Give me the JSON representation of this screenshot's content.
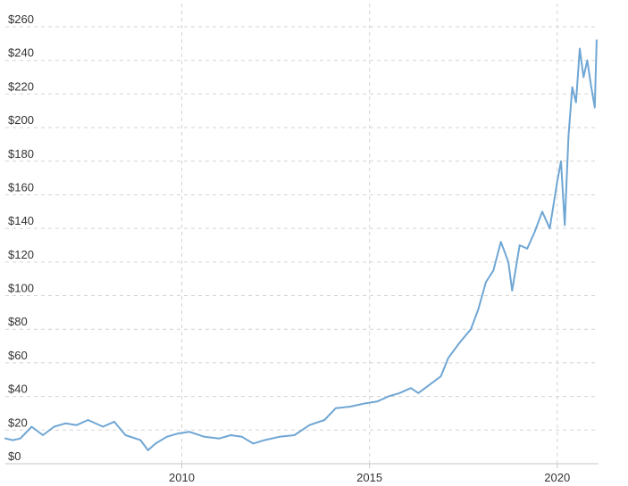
{
  "chart_data": {
    "type": "line",
    "title": "",
    "xlabel": "",
    "ylabel": "",
    "xlim": [
      2005.3,
      2021.1
    ],
    "ylim": [
      0,
      260
    ],
    "grid": true,
    "y_ticks": [
      "$0",
      "$20",
      "$40",
      "$60",
      "$80",
      "$100",
      "$120",
      "$140",
      "$160",
      "$180",
      "$200",
      "$220",
      "$240",
      "$260"
    ],
    "x_ticks": [
      "2010",
      "2015",
      "2020"
    ],
    "colors": {
      "line": "#6fa6d4",
      "grid": "#d4d4d4",
      "text": "#333333"
    },
    "series": [
      {
        "x": [
          2005.3,
          2005.5,
          2005.7,
          2006.0,
          2006.3,
          2006.6,
          2006.9,
          2007.2,
          2007.5,
          2007.9,
          2008.2,
          2008.5,
          2008.9,
          2009.1,
          2009.3,
          2009.6,
          2009.9,
          2010.2,
          2010.6,
          2011.0,
          2011.3,
          2011.6,
          2011.9,
          2012.2,
          2012.6,
          2013.0,
          2013.4,
          2013.8,
          2014.1,
          2014.5,
          2014.9,
          2015.2,
          2015.5,
          2015.8,
          2016.1,
          2016.3,
          2016.6,
          2016.9,
          2017.1,
          2017.4,
          2017.7,
          2017.9,
          2018.1,
          2018.3,
          2018.5,
          2018.7,
          2018.8,
          2019.0,
          2019.2,
          2019.4,
          2019.6,
          2019.8,
          2020.0,
          2020.1,
          2020.2,
          2020.3,
          2020.4,
          2020.5,
          2020.6,
          2020.7,
          2020.8,
          2020.9,
          2021.0,
          2021.05
        ],
        "y": [
          15,
          14,
          15,
          22,
          17,
          22,
          24,
          23,
          26,
          22,
          25,
          17,
          14,
          8,
          12,
          16,
          18,
          19,
          16,
          15,
          17,
          16,
          12,
          14,
          16,
          17,
          23,
          26,
          33,
          34,
          36,
          37,
          40,
          42,
          45,
          42,
          47,
          52,
          63,
          72,
          80,
          92,
          108,
          115,
          132,
          120,
          103,
          130,
          128,
          138,
          150,
          140,
          168,
          180,
          142,
          195,
          224,
          215,
          247,
          230,
          240,
          225,
          212,
          252
        ]
      }
    ]
  }
}
